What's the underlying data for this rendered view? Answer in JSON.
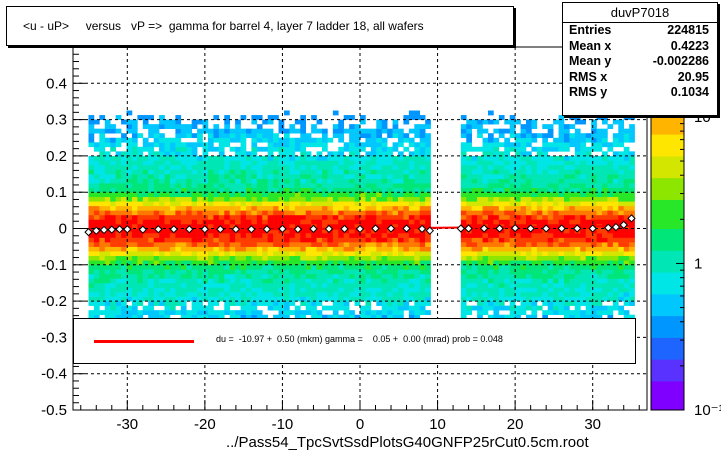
{
  "title": "<u - uP>     versus   vP =>  gamma for barrel 4, layer 7 ladder 18, all wafers",
  "stats": {
    "name": "duvP7018",
    "rows": [
      {
        "label": "Entries",
        "value": "224815"
      },
      {
        "label": "Mean x",
        "value": "0.4223"
      },
      {
        "label": "Mean y",
        "value": "-0.002286"
      },
      {
        "label": "RMS x",
        "value": "20.95"
      },
      {
        "label": "RMS y",
        "value": "0.1034"
      }
    ]
  },
  "legend": {
    "text": "du =  -10.97 +  0.50 (mkm) gamma =    0.05 +  0.00 (mrad) prob = 0.048",
    "line_color": "#ff0000"
  },
  "filename": "../Pass54_TpcSvtSsdPlotsG40GNFP25rCut0.5cm.root",
  "colors": {
    "frame_bg": "#ffffff",
    "fit_line": "#ff0000",
    "points": "#000000",
    "palette": [
      "#8000ff",
      "#5a32ff",
      "#1e64ff",
      "#0096ff",
      "#00c8ff",
      "#00e6e6",
      "#00e6b4",
      "#00e678",
      "#28e628",
      "#8ce600",
      "#d2e600",
      "#ffe600",
      "#ffb400",
      "#ff7800",
      "#ff3c00",
      "#ff0000"
    ]
  },
  "chart_data": {
    "type": "heatmap",
    "x_range": [
      -37,
      37
    ],
    "y_range": [
      -0.5,
      0.5
    ],
    "x_ticks": [
      -30,
      -20,
      -10,
      0,
      10,
      20,
      30
    ],
    "y_ticks": [
      -0.5,
      -0.4,
      -0.3,
      -0.2,
      -0.1,
      0,
      0.1,
      0.2,
      0.3,
      0.4
    ],
    "y_tick_labels": [
      "-0.5",
      "-0.4",
      "-0.3",
      "-0.2",
      "-0.1",
      "0",
      "0.1",
      "0.2",
      "0.3",
      "0.4"
    ],
    "x_tick_labels": [
      "-30",
      "-20",
      "-10",
      "0",
      "10",
      "20",
      "30"
    ],
    "grid": true,
    "z_scale": "log",
    "z_ticks": [
      {
        "value": 0.1,
        "label": "10⁻¹"
      },
      {
        "value": 1,
        "label": "1"
      },
      {
        "value": 10,
        "label": "10"
      }
    ],
    "z_max": 30,
    "filled_x_regions": [
      [
        -35,
        9
      ],
      [
        13,
        35
      ]
    ],
    "profile_points": {
      "x": [
        -35,
        -34,
        -33,
        -32,
        -31,
        -30,
        -28,
        -26,
        -24,
        -22,
        -20,
        -18,
        -16,
        -14,
        -12,
        -10,
        -8,
        -6,
        -4,
        -2,
        0,
        2,
        4,
        6,
        8,
        9,
        13,
        14,
        16,
        18,
        20,
        22,
        24,
        26,
        28,
        30,
        32,
        33,
        34,
        35
      ],
      "y": [
        -0.01,
        -0.006,
        -0.004,
        -0.003,
        -0.002,
        -0.002,
        -0.003,
        -0.002,
        -0.002,
        -0.002,
        -0.002,
        -0.002,
        -0.002,
        -0.002,
        -0.002,
        -0.001,
        -0.002,
        -0.001,
        -0.001,
        -0.001,
        -0.001,
        0.0,
        0.0,
        0.0,
        -0.001,
        -0.006,
        0.0,
        0.0,
        0.0,
        0.0,
        0.001,
        0.0,
        0.0,
        0.0,
        0.0,
        0.0,
        0.002,
        0.004,
        0.01,
        0.028
      ]
    },
    "fit_line": {
      "x": [
        -35,
        35
      ],
      "y": [
        -0.007,
        0.007
      ]
    }
  }
}
